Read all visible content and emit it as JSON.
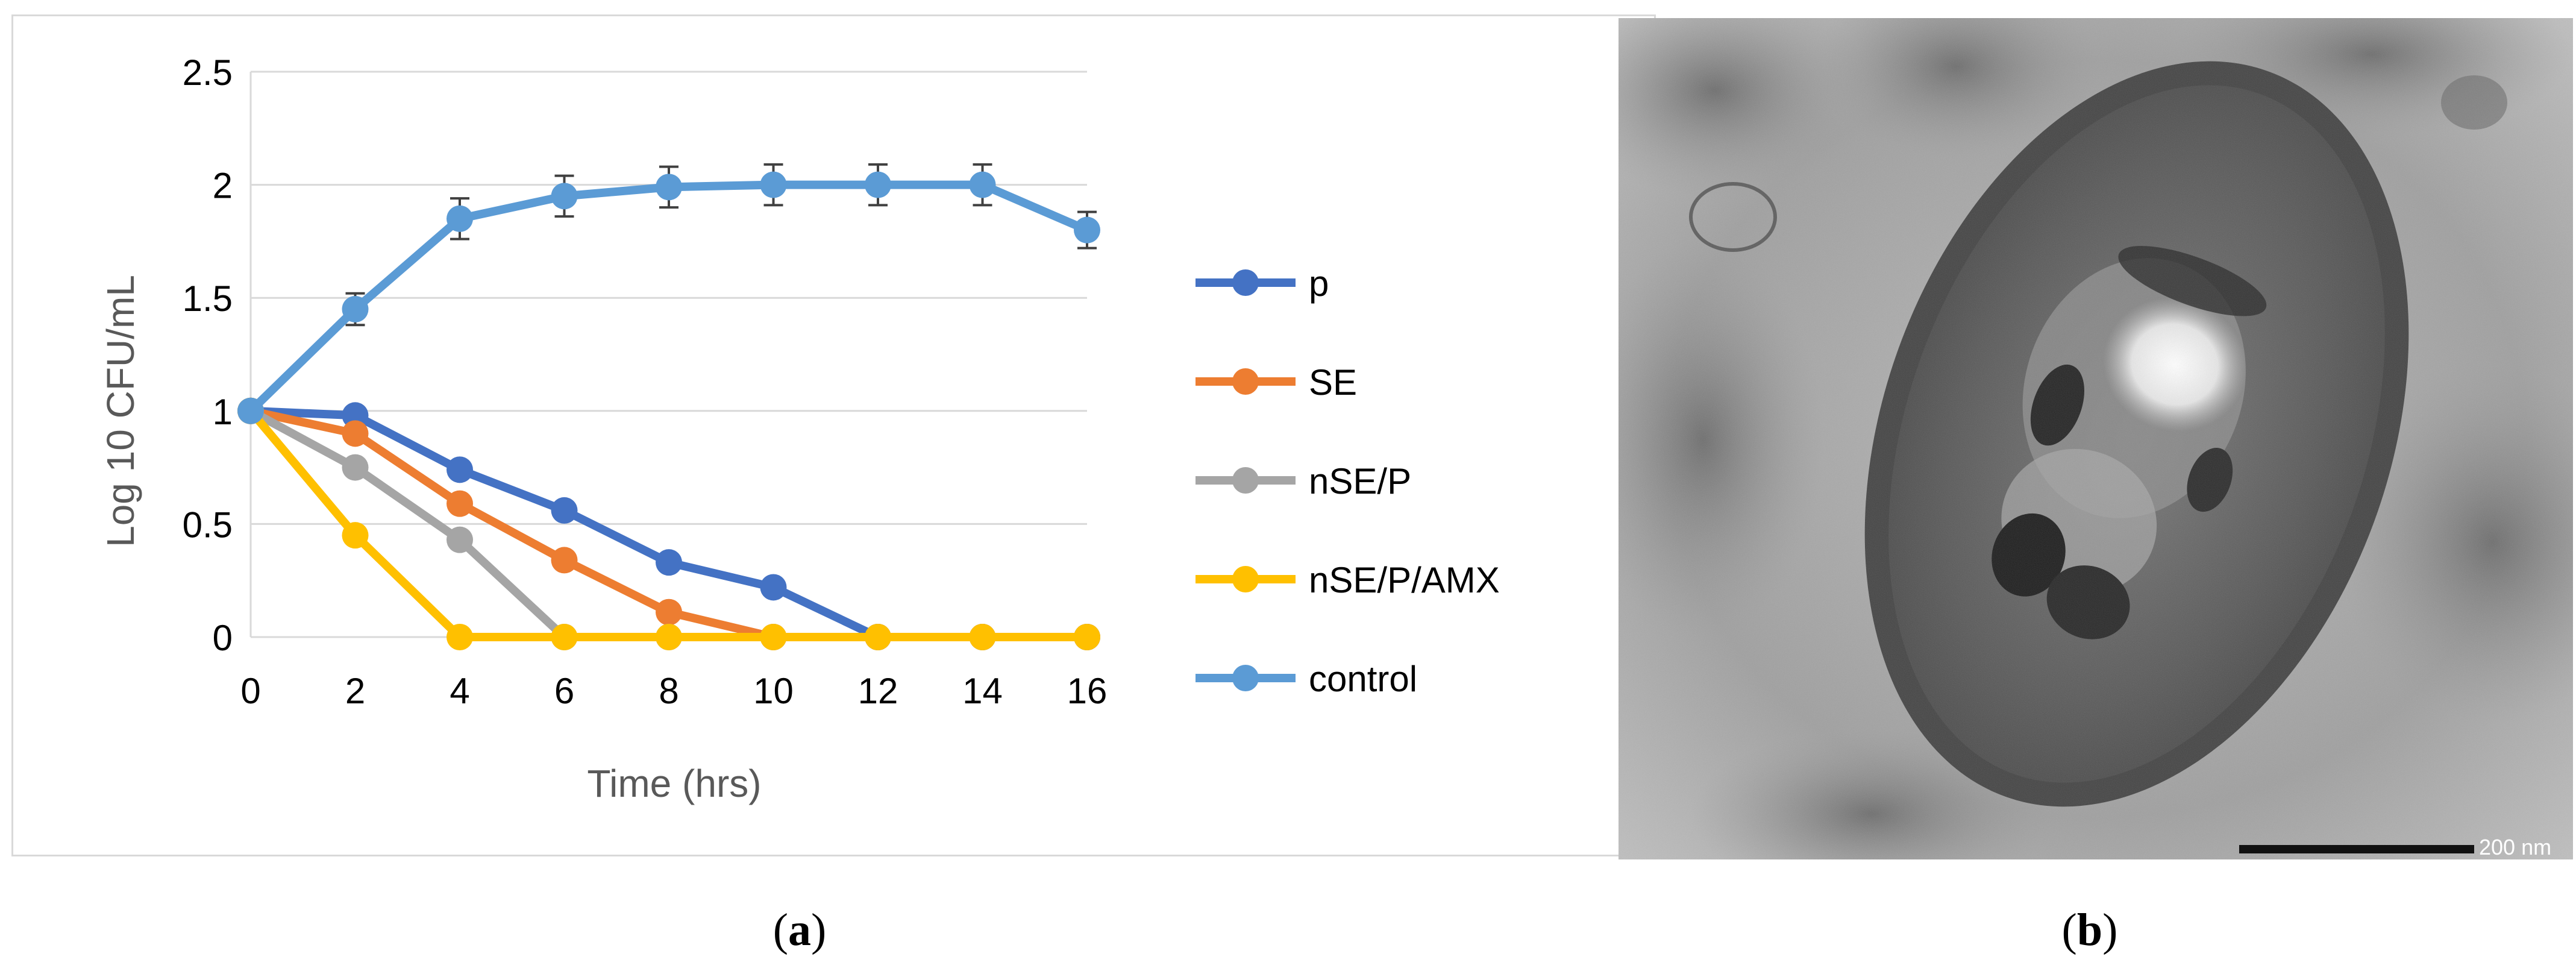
{
  "chart_data": {
    "type": "line",
    "xlabel": "Time (hrs)",
    "ylabel": "Log 10 CFU/mL",
    "x": [
      0,
      2,
      4,
      6,
      8,
      10,
      12,
      14,
      16
    ],
    "xlim": [
      0,
      16
    ],
    "ylim": [
      0,
      2.5
    ],
    "xticks": [
      "0",
      "2",
      "4",
      "6",
      "8",
      "10",
      "12",
      "14",
      "16"
    ],
    "yticks": [
      "0",
      "0.5",
      "1",
      "1.5",
      "2",
      "2.5"
    ],
    "grid": "horizontal",
    "legend": "right",
    "series": [
      {
        "name": "p",
        "color": "#4472c4",
        "values": [
          1.0,
          0.98,
          0.74,
          0.56,
          0.33,
          0.22,
          0.0,
          0.0,
          0.0
        ]
      },
      {
        "name": "SE",
        "color": "#ed7d31",
        "values": [
          1.0,
          0.9,
          0.59,
          0.34,
          0.11,
          0.0,
          0.0,
          0.0,
          0.0
        ]
      },
      {
        "name": "nSE/P",
        "color": "#a5a5a5",
        "values": [
          1.0,
          0.75,
          0.43,
          0.0,
          0.0,
          0.0,
          0.0,
          0.0,
          0.0
        ]
      },
      {
        "name": "nSE/P/AMX",
        "color": "#ffc000",
        "values": [
          1.0,
          0.45,
          0.0,
          0.0,
          0.0,
          0.0,
          0.0,
          0.0,
          0.0
        ]
      },
      {
        "name": "control",
        "color": "#5b9bd5",
        "values": [
          1.0,
          1.45,
          1.85,
          1.95,
          1.99,
          2.0,
          2.0,
          2.0,
          1.8
        ],
        "error": [
          0,
          0.07,
          0.09,
          0.09,
          0.09,
          0.09,
          0.09,
          0.09,
          0.08
        ]
      }
    ]
  },
  "micrograph": {
    "scale_bar_label": "200 nm"
  },
  "captions": {
    "a": "a",
    "b": "b"
  }
}
